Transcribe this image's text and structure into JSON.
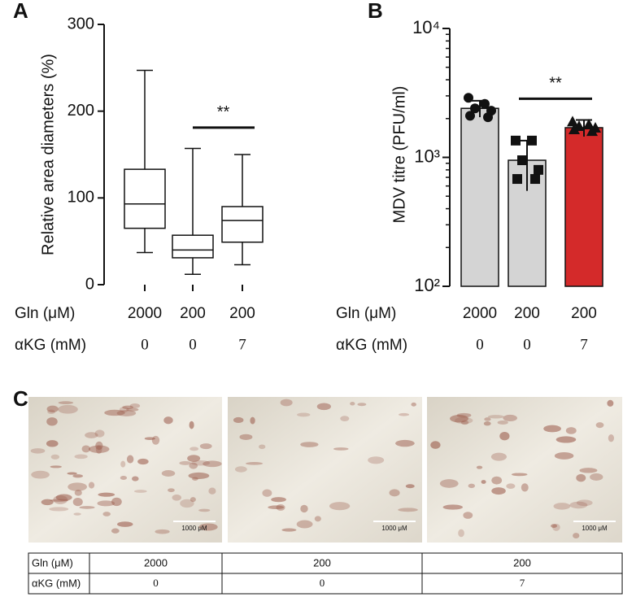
{
  "chart_data": [
    {
      "panel": "A",
      "type": "box",
      "ylabel": "Relative area diameters (%)",
      "category_rows": [
        "Gln (μM)",
        "αKG (mM)"
      ],
      "categories": [
        "2000",
        "200",
        "200"
      ],
      "categories2": [
        "0",
        "0",
        "7"
      ],
      "boxes": [
        {
          "min": 37,
          "q1": 65,
          "median": 93,
          "q3": 133,
          "max": 247
        },
        {
          "min": 12,
          "q1": 31,
          "median": 40,
          "q3": 57,
          "max": 157
        },
        {
          "min": 23,
          "q1": 49,
          "median": 74,
          "q3": 90,
          "max": 150
        }
      ],
      "ylim": [
        0,
        300
      ],
      "yticks": [
        0,
        100,
        200,
        300
      ],
      "annotations": [
        {
          "text": "**",
          "y": 181
        }
      ]
    },
    {
      "panel": "B",
      "type": "bar",
      "log_y": true,
      "ylabel": "MDV titre (PFU/ml)",
      "category_rows": [
        "Gln (μM)",
        "αKG (mM)"
      ],
      "categories": [
        "2000",
        "200",
        "200"
      ],
      "categories2": [
        "0",
        "0",
        "7"
      ],
      "values": [
        2400,
        950,
        1700
      ],
      "errors": [
        350,
        400,
        250
      ],
      "colors": [
        "#d4d4d4",
        "#d4d4d4",
        "#d42a2a"
      ],
      "markers": [
        "circle",
        "square",
        "triangle"
      ],
      "points": [
        [
          2900,
          2600,
          2400,
          2300,
          2100,
          2050
        ],
        [
          1350,
          1350,
          950,
          800,
          680,
          680
        ],
        [
          1900,
          1800,
          1750,
          1700,
          1650,
          1600
        ]
      ],
      "ylim": [
        100,
        10000
      ],
      "yticks": [
        {
          "value": 100,
          "label": "10²"
        },
        {
          "value": 1000,
          "label": "10³"
        },
        {
          "value": 10000,
          "label": "10⁴"
        }
      ],
      "annotations": [
        {
          "text": "**",
          "y": 2850
        }
      ]
    }
  ],
  "panel_c": {
    "panel": "C",
    "scale_bars": [
      "1000 μM",
      "1000 μM",
      "1000 μM"
    ],
    "table": {
      "rows": [
        [
          "Gln (μM)",
          "2000",
          "200",
          "200"
        ],
        [
          "αKG (mM)",
          "0",
          "0",
          "7"
        ]
      ]
    }
  }
}
